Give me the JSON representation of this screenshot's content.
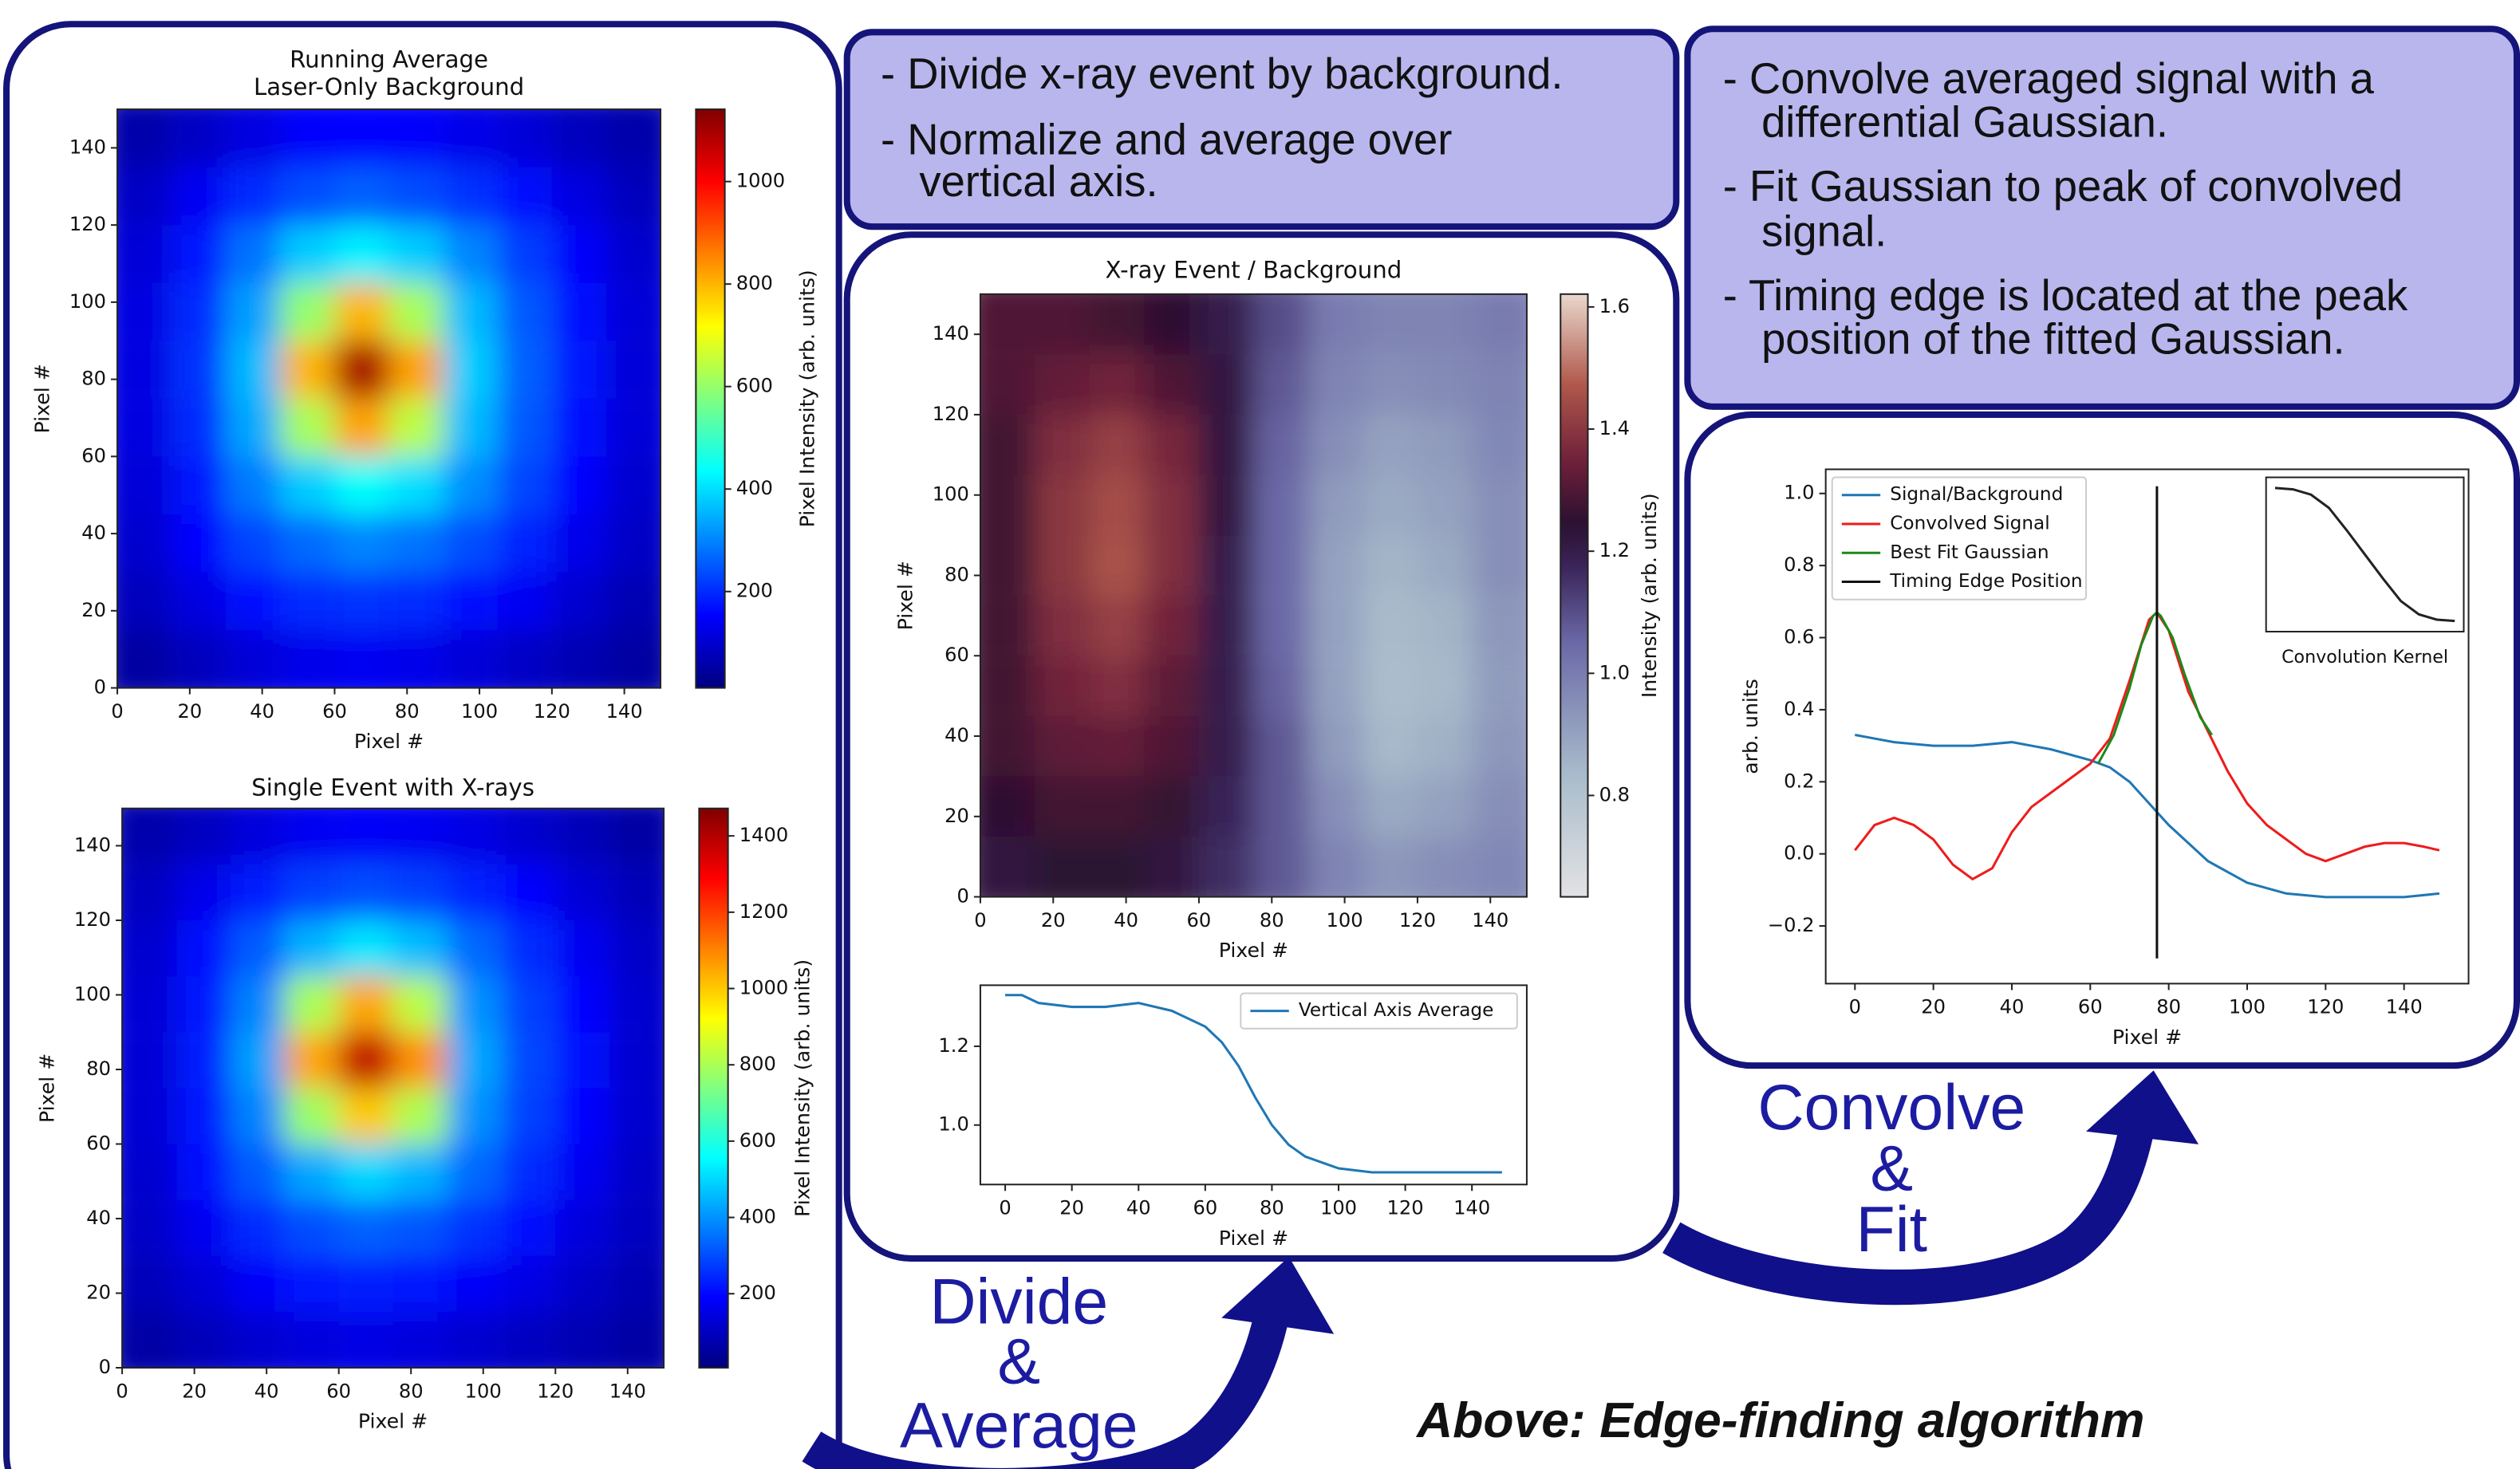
{
  "chart_data": [
    {
      "type": "heatmap",
      "title": "Running Average",
      "subtitle": "Laser-Only Background",
      "xlabel": "Pixel #",
      "ylabel": "Pixel #",
      "xlim": [
        0,
        150
      ],
      "ylim": [
        0,
        150
      ],
      "xticks": [
        0,
        20,
        40,
        60,
        80,
        100,
        120,
        140
      ],
      "yticks": [
        0,
        20,
        40,
        60,
        80,
        100,
        120,
        140
      ],
      "xbins": [
        0,
        15,
        30,
        45,
        60,
        75,
        90,
        105,
        120,
        135,
        150
      ],
      "ybins": [
        0,
        15,
        30,
        45,
        60,
        75,
        90,
        105,
        120,
        135,
        150
      ],
      "z": [
        [
          50,
          80,
          110,
          130,
          140,
          130,
          110,
          90,
          70,
          50
        ],
        [
          80,
          120,
          170,
          200,
          210,
          200,
          170,
          140,
          100,
          70
        ],
        [
          100,
          160,
          230,
          270,
          300,
          280,
          240,
          190,
          130,
          90
        ],
        [
          110,
          180,
          290,
          380,
          440,
          400,
          310,
          230,
          160,
          100
        ],
        [
          120,
          200,
          340,
          620,
          820,
          640,
          360,
          250,
          170,
          110
        ],
        [
          120,
          210,
          360,
          800,
          1100,
          820,
          380,
          260,
          180,
          110
        ],
        [
          120,
          200,
          330,
          600,
          800,
          620,
          360,
          250,
          170,
          110
        ],
        [
          110,
          180,
          280,
          380,
          420,
          380,
          300,
          220,
          150,
          100
        ],
        [
          90,
          140,
          200,
          240,
          260,
          240,
          210,
          170,
          120,
          80
        ],
        [
          60,
          90,
          120,
          150,
          160,
          150,
          130,
          110,
          80,
          60
        ]
      ],
      "colormap": "jet",
      "clim": [
        12,
        1141
      ],
      "colorbar_label": "Pixel Intensity (arb. units)",
      "colorbar_ticks": [
        200,
        400,
        600,
        800,
        1000
      ]
    },
    {
      "type": "heatmap",
      "title": "Single Event with X-rays",
      "xlabel": "Pixel #",
      "ylabel": "Pixel #",
      "xlim": [
        0,
        150
      ],
      "ylim": [
        0,
        150
      ],
      "xticks": [
        0,
        20,
        40,
        60,
        80,
        100,
        120,
        140
      ],
      "yticks": [
        0,
        20,
        40,
        60,
        80,
        100,
        120,
        140
      ],
      "xbins": [
        0,
        15,
        30,
        45,
        60,
        75,
        90,
        105,
        120,
        135,
        150
      ],
      "ybins": [
        0,
        15,
        30,
        45,
        60,
        75,
        90,
        105,
        120,
        135,
        150
      ],
      "z": [
        [
          60,
          90,
          120,
          140,
          150,
          140,
          120,
          100,
          80,
          60
        ],
        [
          90,
          130,
          180,
          220,
          230,
          220,
          180,
          150,
          110,
          80
        ],
        [
          110,
          170,
          250,
          300,
          330,
          310,
          260,
          200,
          140,
          100
        ],
        [
          120,
          200,
          320,
          430,
          500,
          450,
          340,
          250,
          170,
          110
        ],
        [
          130,
          220,
          380,
          780,
          1000,
          800,
          400,
          280,
          190,
          120
        ],
        [
          130,
          230,
          420,
          1050,
          1380,
          1080,
          430,
          290,
          200,
          120
        ],
        [
          130,
          220,
          380,
          800,
          1050,
          820,
          400,
          280,
          190,
          120
        ],
        [
          120,
          200,
          320,
          450,
          520,
          460,
          340,
          250,
          170,
          110
        ],
        [
          100,
          160,
          230,
          280,
          300,
          280,
          240,
          190,
          130,
          90
        ],
        [
          70,
          100,
          140,
          170,
          180,
          170,
          150,
          120,
          90,
          60
        ]
      ],
      "colormap": "jet",
      "clim": [
        6,
        1472
      ],
      "colorbar_label": "Pixel Intensity (arb. units)",
      "colorbar_ticks": [
        200,
        400,
        600,
        800,
        1000,
        1200,
        1400
      ]
    },
    {
      "type": "heatmap",
      "title": "X-ray Event / Background",
      "xlabel": "Pixel #",
      "ylabel": "Pixel #",
      "xlim": [
        0,
        150
      ],
      "ylim": [
        0,
        150
      ],
      "xticks": [
        0,
        20,
        40,
        60,
        80,
        100,
        120,
        140
      ],
      "yticks": [
        0,
        20,
        40,
        60,
        80,
        100,
        120,
        140
      ],
      "xbins": [
        0,
        15,
        30,
        45,
        60,
        75,
        90,
        105,
        120,
        135,
        150
      ],
      "ybins": [
        0,
        15,
        30,
        45,
        60,
        75,
        90,
        105,
        120,
        135,
        150
      ],
      "z": [
        [
          1.22,
          1.24,
          1.24,
          1.22,
          1.16,
          1.08,
          0.98,
          0.93,
          0.95,
          0.97
        ],
        [
          1.25,
          1.28,
          1.28,
          1.26,
          1.18,
          1.08,
          0.95,
          0.88,
          0.9,
          0.95
        ],
        [
          1.28,
          1.32,
          1.33,
          1.3,
          1.2,
          1.08,
          0.92,
          0.84,
          0.86,
          0.93
        ],
        [
          1.28,
          1.35,
          1.38,
          1.32,
          1.2,
          1.06,
          0.9,
          0.82,
          0.84,
          0.92
        ],
        [
          1.28,
          1.38,
          1.42,
          1.35,
          1.2,
          1.05,
          0.9,
          0.83,
          0.85,
          0.93
        ],
        [
          1.28,
          1.4,
          1.46,
          1.38,
          1.2,
          1.05,
          0.9,
          0.85,
          0.88,
          0.95
        ],
        [
          1.28,
          1.4,
          1.45,
          1.38,
          1.22,
          1.05,
          0.92,
          0.88,
          0.9,
          0.95
        ],
        [
          1.28,
          1.38,
          1.42,
          1.36,
          1.22,
          1.06,
          0.95,
          0.9,
          0.92,
          0.97
        ],
        [
          1.3,
          1.33,
          1.35,
          1.3,
          1.22,
          1.08,
          0.98,
          0.95,
          0.96,
          0.98
        ],
        [
          1.3,
          1.3,
          1.28,
          1.25,
          1.2,
          1.1,
          1.0,
          0.98,
          0.98,
          1.0
        ]
      ],
      "colormap": "twilight",
      "clim": [
        0.634,
        1.621
      ],
      "colorbar_label": "Intensity (arb. units)",
      "colorbar_ticks": [
        0.8,
        {
          "value": 1,
          "label": "1.0"
        },
        1.2,
        1.4,
        1.6
      ]
    },
    {
      "type": "line",
      "xlabel": "Pixel #",
      "xlim": [
        -7.45,
        156.45
      ],
      "ylim": [
        0.849,
        1.355
      ],
      "xticks": [
        0,
        20,
        40,
        60,
        80,
        100,
        120,
        140
      ],
      "yticks": [
        {
          "value": 1,
          "label": "1.0"
        },
        1.2
      ],
      "legend": "upper right",
      "series": [
        {
          "name": "Vertical Axis Average",
          "color": "#1f77b4",
          "x": [
            0,
            5,
            10,
            20,
            30,
            40,
            50,
            60,
            65,
            70,
            75,
            80,
            85,
            90,
            100,
            110,
            120,
            130,
            140,
            149
          ],
          "values": [
            1.33,
            1.33,
            1.31,
            1.3,
            1.3,
            1.31,
            1.29,
            1.25,
            1.21,
            1.15,
            1.07,
            1.0,
            0.95,
            0.92,
            0.89,
            0.88,
            0.88,
            0.88,
            0.88,
            0.88
          ]
        }
      ]
    },
    {
      "type": "line",
      "xlabel": "Pixel #",
      "ylabel": "arb. units",
      "xlim": [
        -7.45,
        156.45
      ],
      "ylim": [
        -0.36,
        1.067
      ],
      "xticks": [
        0,
        20,
        40,
        60,
        80,
        100,
        120,
        140
      ],
      "yticks": [
        {
          "value": -0.2,
          "label": "−0.2"
        },
        {
          "value": 0,
          "label": "0.0"
        },
        0.2,
        0.4,
        0.6,
        0.8,
        {
          "value": 1,
          "label": "1.0"
        }
      ],
      "legend": "upper left",
      "series": [
        {
          "name": "Signal/Background",
          "color": "#1f77b4",
          "x": [
            0,
            5,
            10,
            20,
            30,
            40,
            50,
            60,
            65,
            70,
            75,
            80,
            85,
            90,
            100,
            110,
            120,
            130,
            140,
            149
          ],
          "values": [
            0.33,
            0.32,
            0.31,
            0.3,
            0.3,
            0.31,
            0.29,
            0.26,
            0.24,
            0.2,
            0.14,
            0.08,
            0.03,
            -0.02,
            -0.08,
            -0.11,
            -0.12,
            -0.12,
            -0.12,
            -0.11
          ]
        },
        {
          "name": "Convolved Signal",
          "color": "#ee1c1c",
          "x": [
            0,
            5,
            10,
            15,
            20,
            25,
            30,
            35,
            40,
            45,
            50,
            55,
            60,
            65,
            70,
            75,
            77,
            80,
            85,
            90,
            95,
            100,
            105,
            110,
            115,
            120,
            125,
            130,
            135,
            140,
            145,
            149
          ],
          "values": [
            0.01,
            0.08,
            0.1,
            0.08,
            0.04,
            -0.03,
            -0.07,
            -0.04,
            0.06,
            0.13,
            0.17,
            0.21,
            0.25,
            0.32,
            0.48,
            0.65,
            0.67,
            0.62,
            0.45,
            0.34,
            0.23,
            0.14,
            0.08,
            0.04,
            0.0,
            -0.02,
            0.0,
            0.02,
            0.03,
            0.03,
            0.02,
            0.01
          ]
        },
        {
          "name": "Best Fit Gaussian",
          "color": "#1a8a1a",
          "x": [
            62,
            66,
            70,
            73,
            76,
            77,
            78,
            81,
            84,
            88,
            91
          ],
          "values": [
            0.25,
            0.33,
            0.46,
            0.58,
            0.66,
            0.67,
            0.66,
            0.6,
            0.5,
            0.38,
            0.33
          ]
        },
        {
          "name": "Timing Edge Position",
          "color": "#111111",
          "x": [
            77,
            77
          ],
          "values": [
            1.02,
            -0.29
          ]
        }
      ]
    },
    {
      "type": "line",
      "xlabel": "Convolution Kernel",
      "xlim": [
        -0.5,
        10.5
      ],
      "ylim": [
        -0.08,
        1.08
      ],
      "series": [
        {
          "color": "#222222",
          "x": [
            0,
            1,
            2,
            3,
            4,
            5,
            6,
            7,
            8,
            9,
            10
          ],
          "values": [
            1,
            0.99,
            0.95,
            0.85,
            0.68,
            0.5,
            0.32,
            0.15,
            0.05,
            0.01,
            0
          ]
        }
      ]
    }
  ],
  "text_boxes": [
    {
      "bullets": [
        [
          "- Divide x-ray event by background."
        ],
        [
          "- Normalize and average over",
          "vertical axis."
        ]
      ]
    },
    {
      "bullets": [
        [
          "- Convolve averaged signal with a",
          "differential Gaussian."
        ],
        [
          "- Fit Gaussian to peak of convolved",
          "signal."
        ],
        [
          "- Timing edge is located at the peak",
          "position of the fitted Gaussian."
        ]
      ]
    }
  ],
  "arrow_labels": [
    [
      "Divide",
      "&",
      "Average"
    ],
    [
      "Convolve",
      "&",
      "Fit"
    ]
  ],
  "caption": "Above: Edge-finding algorithm"
}
